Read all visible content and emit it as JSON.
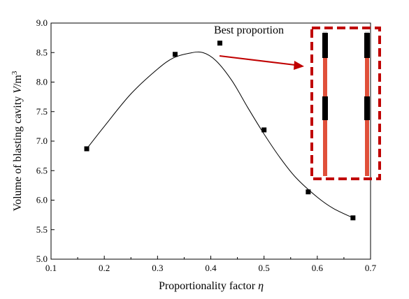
{
  "chart_data": {
    "type": "scatter",
    "xlabel": "Proportionality factor",
    "xlabel_symbol": "η",
    "ylabel": "Volume of blasting cavity",
    "ylabel_symbol": "V",
    "ylabel_unit": "/m",
    "ylabel_unit_exp": "3",
    "xlim": [
      0.1,
      0.7
    ],
    "ylim": [
      5.0,
      9.0
    ],
    "x_ticks": [
      "0.1",
      "0.2",
      "0.3",
      "0.4",
      "0.5",
      "0.6",
      "0.7"
    ],
    "y_ticks": [
      "5.0",
      "5.5",
      "6.0",
      "6.5",
      "7.0",
      "7.5",
      "8.0",
      "8.5",
      "9.0"
    ],
    "points": [
      {
        "x": 0.167,
        "y": 6.87
      },
      {
        "x": 0.333,
        "y": 8.47
      },
      {
        "x": 0.417,
        "y": 8.66
      },
      {
        "x": 0.5,
        "y": 7.19
      },
      {
        "x": 0.583,
        "y": 6.14
      },
      {
        "x": 0.667,
        "y": 5.7
      }
    ],
    "fit_curve": [
      {
        "x": 0.167,
        "y": 6.87
      },
      {
        "x": 0.2,
        "y": 7.25
      },
      {
        "x": 0.25,
        "y": 7.8
      },
      {
        "x": 0.3,
        "y": 8.22
      },
      {
        "x": 0.33,
        "y": 8.41
      },
      {
        "x": 0.36,
        "y": 8.49
      },
      {
        "x": 0.385,
        "y": 8.5
      },
      {
        "x": 0.41,
        "y": 8.36
      },
      {
        "x": 0.44,
        "y": 8.02
      },
      {
        "x": 0.47,
        "y": 7.56
      },
      {
        "x": 0.5,
        "y": 7.12
      },
      {
        "x": 0.53,
        "y": 6.72
      },
      {
        "x": 0.56,
        "y": 6.38
      },
      {
        "x": 0.6,
        "y": 6.05
      },
      {
        "x": 0.63,
        "y": 5.86
      },
      {
        "x": 0.667,
        "y": 5.7
      }
    ],
    "grid": false,
    "annotation": {
      "text": "Best proportion",
      "arrow_color": "#c00000",
      "box_color": "#c00000"
    },
    "inset_colors": {
      "charge": "#e0503a",
      "stemming": "#000000",
      "rod": "#d8d8d8"
    }
  }
}
